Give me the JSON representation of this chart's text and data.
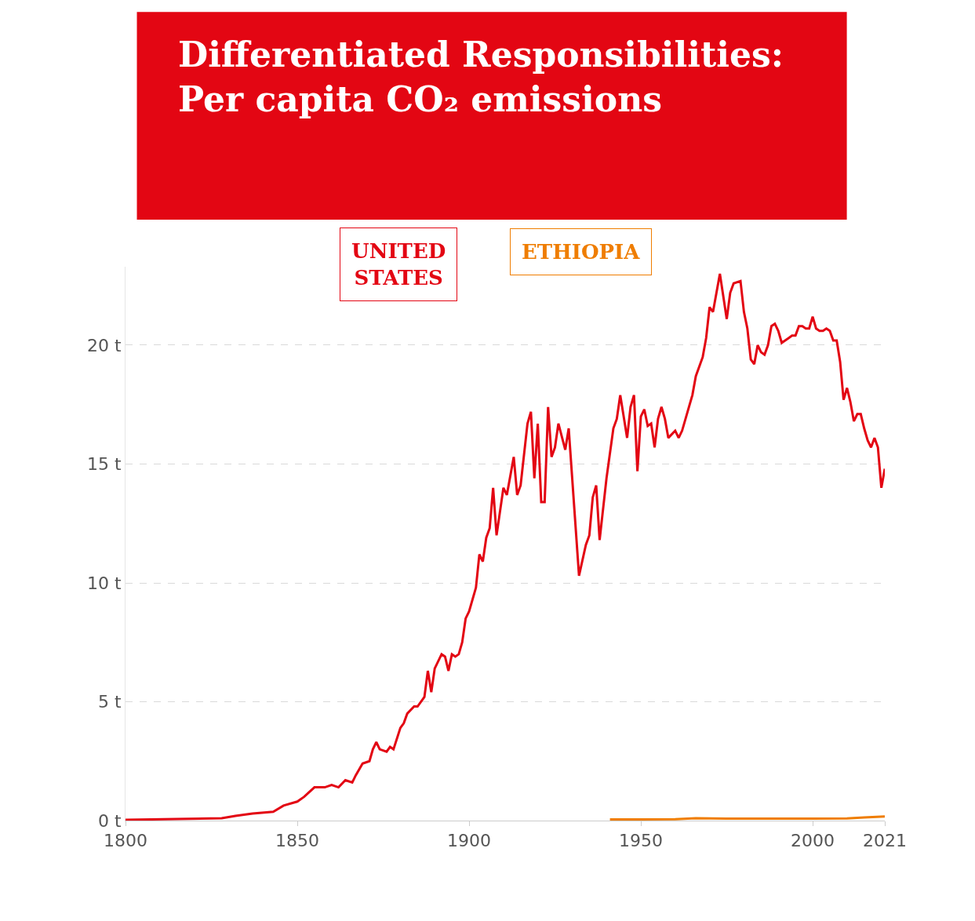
{
  "chart_data": {
    "type": "line",
    "title": "Differentiated Responsibilities: Per capita CO₂ emissions",
    "xlim": [
      1800,
      2021
    ],
    "xticks": [
      1800,
      1850,
      1900,
      1950,
      2000,
      2021
    ],
    "ylim": [
      0,
      23.3
    ],
    "yticks": [
      {
        "value": 0,
        "label": "0 t"
      },
      {
        "value": 5,
        "label": "5 t"
      },
      {
        "value": 10,
        "label": "10 t"
      },
      {
        "value": 15,
        "label": "15 t"
      },
      {
        "value": 20,
        "label": "20 t"
      }
    ],
    "grid": "y",
    "legend": "top",
    "line_style": "solid",
    "series": [
      {
        "name": "UNITED STATES",
        "color": "#e30613",
        "x": [
          1800,
          1828,
          1832,
          1837,
          1843,
          1846,
          1850,
          1852,
          1855,
          1858,
          1860,
          1862,
          1864,
          1866,
          1867,
          1869,
          1871,
          1872,
          1873,
          1874,
          1876,
          1877,
          1878,
          1880,
          1881,
          1882,
          1884,
          1885,
          1887,
          1888,
          1889,
          1890,
          1892,
          1893,
          1894,
          1895,
          1896,
          1897,
          1898,
          1899,
          1900,
          1902,
          1903,
          1904,
          1905,
          1906,
          1907,
          1908,
          1910,
          1911,
          1913,
          1914,
          1915,
          1917,
          1918,
          1919,
          1920,
          1921,
          1922,
          1923,
          1924,
          1925,
          1926,
          1928,
          1929,
          1932,
          1934,
          1935,
          1936,
          1937,
          1938,
          1940,
          1942,
          1943,
          1944,
          1946,
          1947,
          1948,
          1949,
          1950,
          1951,
          1952,
          1953,
          1954,
          1955,
          1956,
          1957,
          1958,
          1960,
          1961,
          1962,
          1965,
          1966,
          1968,
          1969,
          1970,
          1971,
          1973,
          1975,
          1976,
          1977,
          1979,
          1980,
          1981,
          1982,
          1983,
          1984,
          1985,
          1986,
          1987,
          1988,
          1989,
          1990,
          1991,
          1992,
          1993,
          1994,
          1995,
          1996,
          1997,
          1998,
          1999,
          2000,
          2001,
          2002,
          2003,
          2004,
          2005,
          2006,
          2007,
          2008,
          2009,
          2010,
          2011,
          2012,
          2013,
          2014,
          2015,
          2016,
          2017,
          2018,
          2019,
          2020,
          2021
        ],
        "values": [
          0.03,
          0.1,
          0.2,
          0.3,
          0.37,
          0.63,
          0.8,
          1.0,
          1.4,
          1.4,
          1.5,
          1.4,
          1.7,
          1.6,
          1.9,
          2.4,
          2.5,
          3.0,
          3.3,
          3.0,
          2.9,
          3.1,
          3.0,
          3.9,
          4.1,
          4.5,
          4.8,
          4.8,
          5.2,
          6.3,
          5.4,
          6.4,
          7.0,
          6.9,
          6.3,
          7.0,
          6.9,
          7.0,
          7.5,
          8.5,
          8.8,
          9.8,
          11.2,
          10.9,
          11.9,
          12.3,
          14.0,
          12.0,
          14.0,
          13.7,
          15.3,
          13.7,
          14.1,
          16.7,
          17.2,
          14.4,
          16.7,
          13.4,
          13.4,
          17.4,
          15.3,
          15.7,
          16.7,
          15.6,
          16.5,
          10.3,
          11.6,
          12.0,
          13.6,
          14.1,
          11.8,
          14.4,
          16.5,
          16.9,
          17.9,
          16.1,
          17.4,
          17.9,
          14.7,
          17.0,
          17.3,
          16.6,
          16.7,
          15.7,
          16.9,
          17.4,
          16.9,
          16.1,
          16.4,
          16.1,
          16.4,
          17.9,
          18.7,
          19.5,
          20.3,
          21.6,
          21.4,
          23.0,
          21.1,
          22.2,
          22.6,
          22.7,
          21.4,
          20.7,
          19.4,
          19.2,
          20.0,
          19.7,
          19.6,
          20.0,
          20.8,
          20.9,
          20.6,
          20.1,
          20.2,
          20.3,
          20.4,
          20.4,
          20.8,
          20.8,
          20.7,
          20.7,
          21.2,
          20.7,
          20.6,
          20.6,
          20.7,
          20.6,
          20.2,
          20.2,
          19.3,
          17.7,
          18.2,
          17.6,
          16.8,
          17.1,
          17.1,
          16.5,
          16.0,
          15.7,
          16.1,
          15.7,
          14.0,
          14.8
        ]
      },
      {
        "name": "ETHIOPIA",
        "color": "#ef7d00",
        "x": [
          1941,
          1950,
          1960,
          1966,
          1975,
          1990,
          2000,
          2010,
          2015,
          2021
        ],
        "values": [
          0.05,
          0.05,
          0.06,
          0.1,
          0.08,
          0.08,
          0.08,
          0.09,
          0.13,
          0.17
        ]
      }
    ]
  }
}
